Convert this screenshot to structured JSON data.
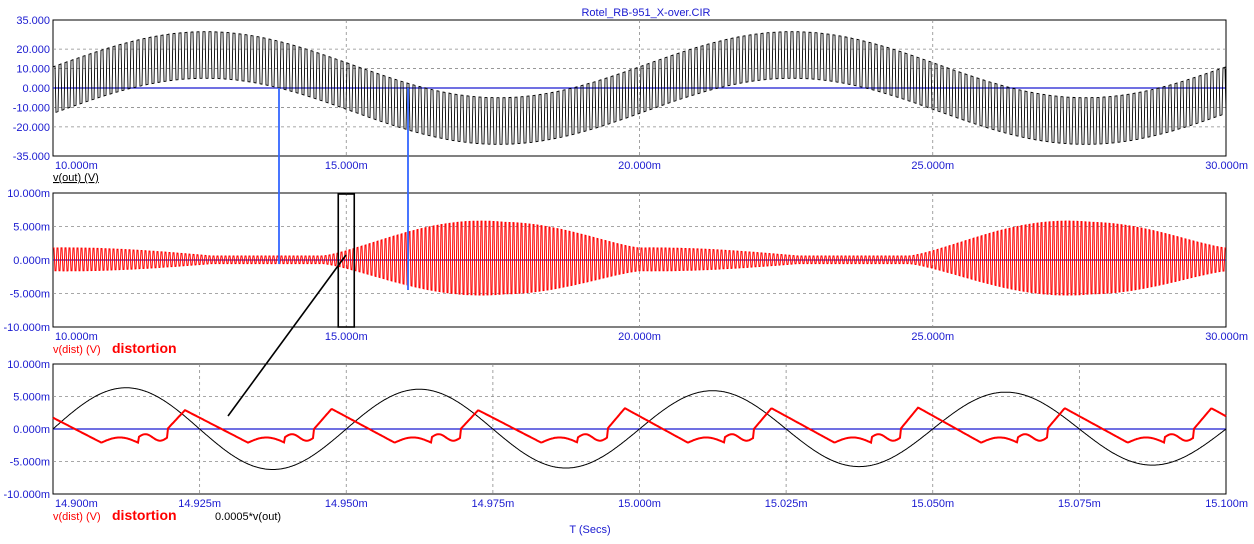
{
  "window": {
    "title": "Rotel_RB-951_X-over.CIR"
  },
  "colors": {
    "axis_text": "#1a1ad0",
    "zero_line": "#1a1ad0",
    "trace_black": "#000000",
    "trace_red": "#ff0000",
    "cursor": "#3366ff",
    "grid": "#8a8a8a"
  },
  "chart_data": [
    {
      "type": "line",
      "title": "Rotel_RB-951_X-over.CIR",
      "series": [
        {
          "name": "v(out) (V)",
          "color": "#000000",
          "description": "~100 kHz carrier amplitude-modulated, envelope swings between about -30 and +30 with 10 ms period"
        }
      ],
      "xlim": [
        0.01,
        0.03
      ],
      "x_ticks": [
        "10.000m",
        "15.000m",
        "20.000m",
        "25.000m",
        "30.000m"
      ],
      "ylim": [
        -35,
        35
      ],
      "y_ticks": [
        "35.000",
        "20.000",
        "10.000",
        "0.000",
        "-10.000",
        "-20.000",
        "-35.000"
      ],
      "ylabel": "v(out) (V)",
      "grid": true
    },
    {
      "type": "line",
      "series": [
        {
          "name": "v(dist) (V)",
          "color": "#ff0000",
          "description": "dense carrier distortion, envelope peaks ~5.5m near 17.5m and 27.5m, small near 13m and 23m"
        }
      ],
      "xlim": [
        0.01,
        0.03
      ],
      "x_ticks": [
        "10.000m",
        "15.000m",
        "20.000m",
        "25.000m",
        "30.000m"
      ],
      "ylim": [
        -0.01,
        0.01
      ],
      "y_ticks": [
        "10.000m",
        "5.000m",
        "0.000m",
        "-5.000m",
        "-10.000m"
      ],
      "ylabel": "v(dist) (V)",
      "annotation": "distortion",
      "grid": true
    },
    {
      "type": "line",
      "xlabel": "T (Secs)",
      "xlim": [
        0.0149,
        0.0151
      ],
      "x_ticks": [
        "14.900m",
        "14.925m",
        "14.950m",
        "14.975m",
        "15.000m",
        "15.025m",
        "15.050m",
        "15.075m",
        "15.100m"
      ],
      "ylim": [
        -0.01,
        0.01
      ],
      "y_ticks": [
        "10.000m",
        "5.000m",
        "0.000m",
        "-5.000m",
        "-10.000m"
      ],
      "series": [
        {
          "name": "0.0005*v(out)",
          "color": "#000000",
          "amplitude_start": 0.0064,
          "amplitude_end": 0.0055,
          "frequency_hz": 20000
        },
        {
          "name": "v(dist) (V)",
          "color": "#ff0000",
          "peaks": [
            0.0029,
            0.0031,
            0.0029,
            0.0032,
            0.0032,
            0.0033,
            0.0032
          ]
        }
      ],
      "annotation": "distortion",
      "grid": true
    }
  ]
}
